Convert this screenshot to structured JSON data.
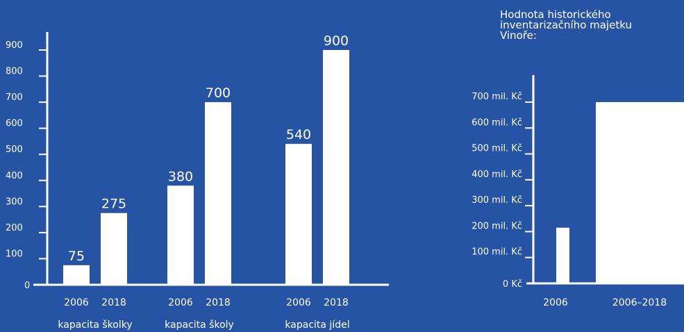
{
  "colors": {
    "background": "#2653a4",
    "foreground": "#ffffff"
  },
  "chart_data": [
    {
      "type": "bar",
      "title": "",
      "xlabel": "",
      "ylabel": "",
      "ylim": [
        0,
        900
      ],
      "yticks": [
        "0",
        "100",
        "200",
        "300",
        "400",
        "500",
        "600",
        "700",
        "800",
        "900"
      ],
      "groups": [
        "kapacita školky",
        "kapacita školy",
        "kapacita jídel"
      ],
      "categories": [
        "2006",
        "2018"
      ],
      "bars": [
        {
          "group": "kapacita školky",
          "category": "2006",
          "value": 75,
          "label": "75"
        },
        {
          "group": "kapacita školky",
          "category": "2018",
          "value": 275,
          "label": "275"
        },
        {
          "group": "kapacita školy",
          "category": "2006",
          "value": 380,
          "label": "380"
        },
        {
          "group": "kapacita školy",
          "category": "2018",
          "value": 700,
          "label": "700"
        },
        {
          "group": "kapacita jídel",
          "category": "2006",
          "value": 540,
          "label": "540"
        },
        {
          "group": "kapacita jídel",
          "category": "2018",
          "value": 900,
          "label": "900"
        }
      ],
      "legend": "none",
      "grid": false
    },
    {
      "type": "bar",
      "title": [
        "Hodnota historického",
        "inventarizačního majetku",
        "Vinoře:"
      ],
      "xlabel": "",
      "ylabel": "",
      "unit": "mil. Kč",
      "ylim": [
        0,
        700
      ],
      "yticks": [
        "0 Kč",
        "100 mil. Kč",
        "200 mil. Kč",
        "300 mil. Kč",
        "400 mil. Kč",
        "500 mil. Kč",
        "600 mil. Kč",
        "700 mil. Kč"
      ],
      "categories": [
        "2006",
        "2006–2018"
      ],
      "values": [
        215,
        700
      ],
      "legend": "none",
      "grid": false
    }
  ]
}
